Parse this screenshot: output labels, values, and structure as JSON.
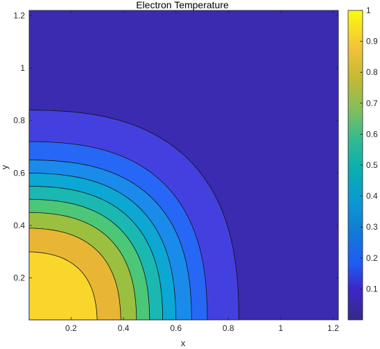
{
  "chart_data": {
    "type": "contour",
    "title": "Electron Temperature",
    "xlabel": "x",
    "ylabel": "y",
    "xlim": [
      0.04,
      1.22
    ],
    "ylim": [
      0.04,
      1.22
    ],
    "x_ticks": [
      0.2,
      0.4,
      0.6,
      0.8,
      1,
      1.2
    ],
    "y_ticks": [
      0.2,
      0.4,
      0.6,
      0.8,
      1,
      1.2
    ],
    "x_tick_labels": [
      "0.2",
      "0.4",
      "0.6",
      "0.8",
      "1",
      "1.2"
    ],
    "y_tick_labels": [
      "0.2",
      "0.4",
      "0.6",
      "0.8",
      "1",
      "1.2"
    ],
    "colorbar": {
      "range": [
        0,
        1
      ],
      "ticks": [
        0.1,
        0.2,
        0.3,
        0.4,
        0.5,
        0.6,
        0.7,
        0.8,
        0.9,
        1
      ],
      "tick_labels": [
        "0.1",
        "0.2",
        "0.3",
        "0.4",
        "0.5",
        "0.6",
        "0.7",
        "0.8",
        "0.9",
        "1"
      ],
      "colormap": "parula"
    },
    "contour_levels": [
      {
        "value": 0.1,
        "color": "#4440E0",
        "x_extent": 0.84,
        "y_extent": 0.84
      },
      {
        "value": 0.2,
        "color": "#2667F6",
        "x_extent": 0.72,
        "y_extent": 0.72
      },
      {
        "value": 0.3,
        "color": "#1A8BEA",
        "x_extent": 0.66,
        "y_extent": 0.65
      },
      {
        "value": 0.4,
        "color": "#0CA7D3",
        "x_extent": 0.6,
        "y_extent": 0.6
      },
      {
        "value": 0.5,
        "color": "#1BB8B1",
        "x_extent": 0.55,
        "y_extent": 0.55
      },
      {
        "value": 0.6,
        "color": "#4CC677",
        "x_extent": 0.5,
        "y_extent": 0.5
      },
      {
        "value": 0.7,
        "color": "#9BBF3F",
        "x_extent": 0.45,
        "y_extent": 0.45
      },
      {
        "value": 0.8,
        "color": "#E8B634",
        "x_extent": 0.39,
        "y_extent": 0.39
      },
      {
        "value": 0.9,
        "color": "#F9D62B",
        "x_extent": 0.3,
        "y_extent": 0.3
      }
    ],
    "background_color": "#3A2BB0",
    "grid": false
  }
}
